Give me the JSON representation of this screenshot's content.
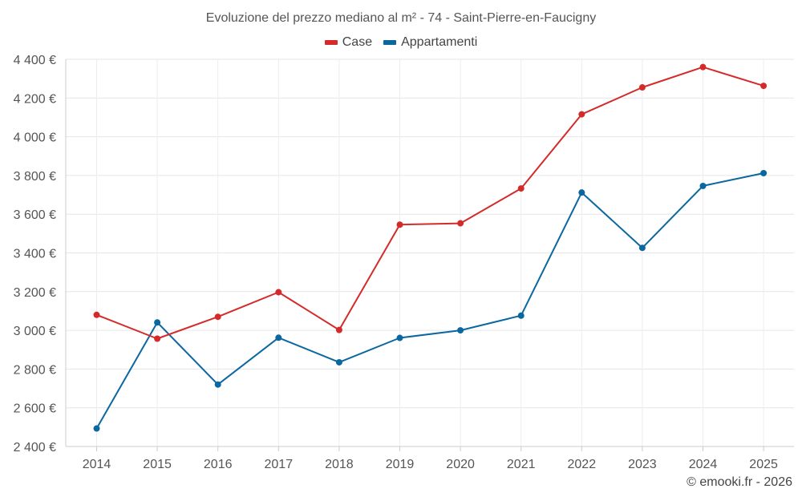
{
  "chart_data": {
    "type": "line",
    "title": "Evoluzione del prezzo mediano al m² - 74 - Saint-Pierre-en-Faucigny",
    "xlabel": "",
    "ylabel": "",
    "categories": [
      "2014",
      "2015",
      "2016",
      "2017",
      "2018",
      "2019",
      "2020",
      "2021",
      "2022",
      "2023",
      "2024",
      "2025"
    ],
    "ylim": [
      2400,
      4400
    ],
    "yticks": [
      2400,
      2600,
      2800,
      3000,
      3200,
      3400,
      3600,
      3800,
      4000,
      4200,
      4400
    ],
    "ytick_labels": [
      "2 400 €",
      "2 600 €",
      "2 800 €",
      "3 000 €",
      "3 200 €",
      "3 400 €",
      "3 600 €",
      "3 800 €",
      "4 000 €",
      "4 200 €",
      "4 400 €"
    ],
    "grid": true,
    "legend_position": "top-center",
    "series": [
      {
        "name": "Case",
        "color": "#d42a2a",
        "values": [
          3080,
          2957,
          3070,
          3197,
          3002,
          3546,
          3553,
          3733,
          4116,
          4255,
          4360,
          4263
        ]
      },
      {
        "name": "Appartamenti",
        "color": "#0b67a0",
        "values": [
          2493,
          3041,
          2720,
          2962,
          2835,
          2961,
          3000,
          3076,
          3712,
          3426,
          3746,
          3812
        ]
      }
    ]
  },
  "credit": "© emooki.fr - 2026"
}
